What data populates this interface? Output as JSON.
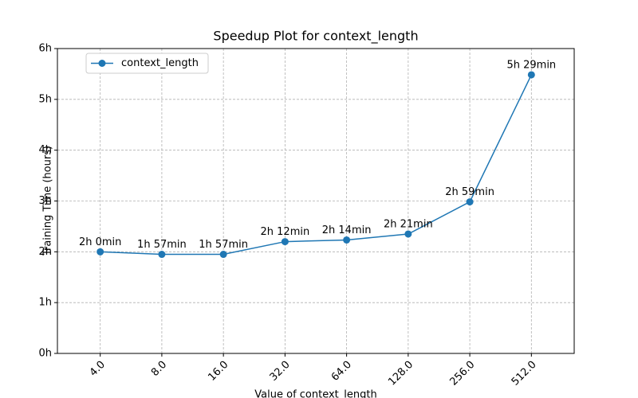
{
  "chart_data": {
    "type": "line",
    "title": "Speedup Plot for context_length",
    "x_label": "Value of context_length",
    "y_label": "Training Time (hours)",
    "categories": [
      "4.0",
      "8.0",
      "16.0",
      "32.0",
      "64.0",
      "128.0",
      "256.0",
      "512.0"
    ],
    "series": [
      {
        "name": "context_length",
        "color": "#1f77b4",
        "values": [
          2,
          1.95,
          1.95,
          2.2,
          2.2333,
          2.35,
          2.9833,
          5.4833
        ],
        "value_labels": [
          "2h 0min",
          "1h 57min",
          "1h 57min",
          "2h 12min",
          "2h 14min",
          "2h 21min",
          "2h 59min",
          "5h 29min"
        ]
      }
    ],
    "ylim": [
      0,
      6
    ],
    "yticks": [
      {
        "value": 0,
        "label": "0h"
      },
      {
        "value": 1,
        "label": "1h"
      },
      {
        "value": 2,
        "label": "2h"
      },
      {
        "value": 3,
        "label": "3h"
      },
      {
        "value": 4,
        "label": "4h"
      },
      {
        "value": 5,
        "label": "5h"
      },
      {
        "value": 6,
        "label": "6h"
      }
    ],
    "grid": true,
    "legend": "upper left"
  }
}
